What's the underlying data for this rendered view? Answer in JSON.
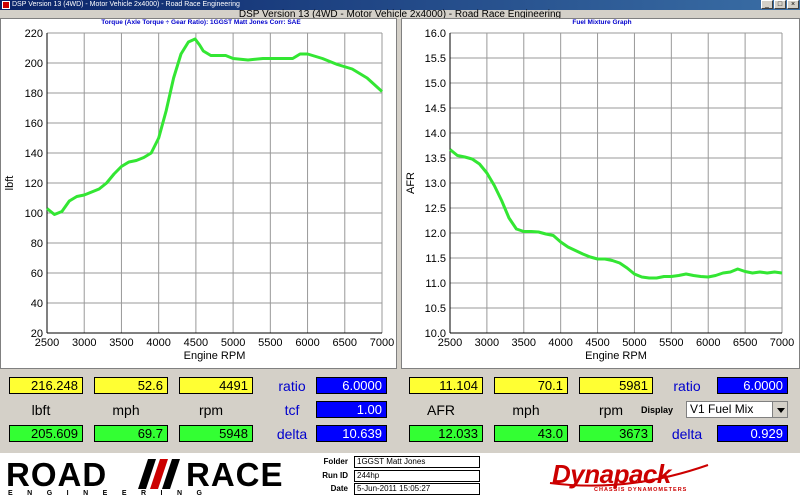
{
  "window": {
    "title": "DSP Version 13 (4WD) - Motor Vehicle 2x4000) - Road Race Engineering",
    "buttons": [
      "_",
      "□",
      "×"
    ]
  },
  "main_title": "DSP Version 13 (4WD - Motor Vehicle 2x4000) - Road Race Engineering",
  "colors": {
    "curve": "#33e633",
    "readout_yellow": "#ffff33",
    "readout_green": "#33ff33",
    "readout_blue": "#0000ff",
    "label_blue": "#0000cc",
    "logo_red": "#cc0000"
  },
  "left_graph": {
    "header": "Torque (Axle Torque ÷ Gear Ratio): 1GGST Matt Jones     Corr: SAE"
  },
  "right_graph": {
    "header": "Fuel Mixture Graph"
  },
  "chart_data": [
    {
      "type": "line",
      "title": "Torque (Axle Torque ÷ Gear Ratio): 1GGST Matt Jones     Corr: SAE",
      "xlabel": "Engine RPM",
      "ylabel": "lbft",
      "xlim": [
        2500,
        7000
      ],
      "ylim": [
        20,
        220
      ],
      "x_ticks": [
        "2500",
        "3000",
        "3500",
        "4000",
        "4500",
        "5000",
        "5500",
        "6000",
        "6500",
        "7000"
      ],
      "y_ticks": [
        "20",
        "40",
        "60",
        "80",
        "100",
        "120",
        "140",
        "160",
        "180",
        "200",
        "220"
      ],
      "grid": true,
      "series": [
        {
          "color": "#33e633",
          "x": [
            2500,
            2600,
            2700,
            2800,
            2900,
            3000,
            3100,
            3200,
            3300,
            3400,
            3500,
            3600,
            3700,
            3800,
            3900,
            4000,
            4100,
            4200,
            4300,
            4400,
            4490,
            4550,
            4600,
            4700,
            4800,
            4900,
            5000,
            5200,
            5400,
            5600,
            5800,
            5900,
            6000,
            6200,
            6400,
            6600,
            6800,
            7000
          ],
          "y": [
            103,
            99,
            101,
            108,
            111,
            112,
            114,
            116,
            120,
            126,
            131,
            134,
            135,
            137,
            140,
            150,
            168,
            190,
            206,
            214,
            216,
            212,
            208,
            205,
            205,
            205,
            203,
            202,
            203,
            203,
            203,
            206,
            206,
            203,
            199,
            196,
            190,
            181
          ]
        }
      ]
    },
    {
      "type": "line",
      "title": "Fuel Mixture Graph",
      "xlabel": "Engine RPM",
      "ylabel": "AFR",
      "xlim": [
        2500,
        7000
      ],
      "ylim": [
        10.0,
        16.0
      ],
      "x_ticks": [
        "2500",
        "3000",
        "3500",
        "4000",
        "4500",
        "5000",
        "5500",
        "6000",
        "6500",
        "7000"
      ],
      "y_ticks": [
        "10.0",
        "10.5",
        "11.0",
        "11.5",
        "12.0",
        "12.5",
        "13.0",
        "13.5",
        "14.0",
        "14.5",
        "15.0",
        "15.5",
        "16.0"
      ],
      "grid": true,
      "series": [
        {
          "color": "#33e633",
          "x": [
            2500,
            2600,
            2700,
            2800,
            2900,
            3000,
            3100,
            3200,
            3300,
            3400,
            3500,
            3600,
            3700,
            3800,
            3900,
            4000,
            4100,
            4200,
            4300,
            4400,
            4500,
            4600,
            4700,
            4800,
            4900,
            5000,
            5100,
            5200,
            5300,
            5400,
            5500,
            5600,
            5700,
            5800,
            5900,
            6000,
            6100,
            6200,
            6300,
            6400,
            6500,
            6600,
            6700,
            6800,
            6900,
            7000
          ],
          "y": [
            13.67,
            13.55,
            13.52,
            13.48,
            13.38,
            13.2,
            12.95,
            12.65,
            12.3,
            12.08,
            12.03,
            12.03,
            12.02,
            11.98,
            11.95,
            11.82,
            11.72,
            11.65,
            11.58,
            11.52,
            11.48,
            11.48,
            11.45,
            11.4,
            11.3,
            11.18,
            11.12,
            11.1,
            11.1,
            11.13,
            11.13,
            11.15,
            11.18,
            11.15,
            11.13,
            11.12,
            11.15,
            11.2,
            11.22,
            11.28,
            11.23,
            11.2,
            11.22,
            11.2,
            11.22,
            11.2
          ]
        }
      ]
    }
  ],
  "readouts_left": {
    "row1": {
      "v1": "216.248",
      "v2": "52.6",
      "v3": "4491",
      "label": "ratio",
      "blue": "6.0000"
    },
    "row2": {
      "l1": "lbft",
      "l2": "mph",
      "l3": "rpm",
      "label": "tcf",
      "blue": "1.00"
    },
    "row3": {
      "v1": "205.609",
      "v2": "69.7",
      "v3": "5948",
      "label": "delta",
      "blue": "10.639"
    }
  },
  "readouts_right": {
    "row1": {
      "v1": "11.104",
      "v2": "70.1",
      "v3": "5981",
      "label": "ratio",
      "blue": "6.0000"
    },
    "row2": {
      "l1": "AFR",
      "l2": "mph",
      "l3": "rpm",
      "display_label": "Display",
      "display_value": "V1 Fuel Mix"
    },
    "row3": {
      "v1": "12.033",
      "v2": "43.0",
      "v3": "3673",
      "label": "delta",
      "blue": "0.929"
    }
  },
  "footer": {
    "logo_road": "ROAD",
    "logo_race": "RACE",
    "logo_engineering": "ENGINEERING",
    "folder_label": "Folder",
    "folder_value": "1GGST Matt Jones",
    "runid_label": "Run ID",
    "runid_value": "244hp",
    "date_label": "Date",
    "date_value": "5-Jun-2011 15:05:27",
    "dyna_logo": "Dynapack",
    "dyna_sub": "CHASSIS DYNAMOMETERS"
  }
}
